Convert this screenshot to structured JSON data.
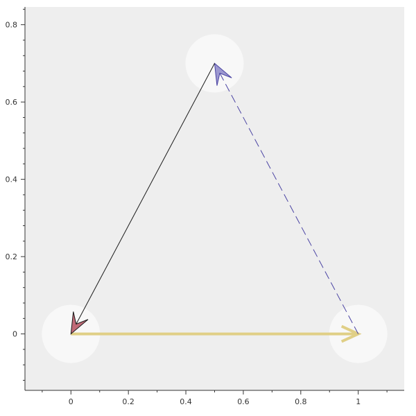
{
  "chart_data": {
    "type": "scatter",
    "title": "",
    "xlabel": "",
    "ylabel": "",
    "xlim": [
      -0.16,
      1.16
    ],
    "ylim": [
      -0.146,
      0.846
    ],
    "x_ticks": [
      0,
      0.2,
      0.4,
      0.6,
      0.8,
      1
    ],
    "x_tick_labels": [
      "0",
      "0.2",
      "0.4",
      "0.6",
      "0.8",
      "1"
    ],
    "y_ticks": [
      0,
      0.2,
      0.4,
      0.6,
      0.8
    ],
    "y_tick_labels": [
      "0",
      "0.2",
      "0.4",
      "0.6",
      "0.8"
    ],
    "grid": false,
    "nodes": [
      {
        "x": 0,
        "y": 0
      },
      {
        "x": 1,
        "y": 0
      },
      {
        "x": 0.5,
        "y": 0.7
      }
    ],
    "arrows": [
      {
        "from": [
          0,
          0
        ],
        "to": [
          1,
          0
        ],
        "style": "open-head",
        "line": "solid",
        "color": "#e0cf86",
        "width": 4
      },
      {
        "from": [
          1,
          0
        ],
        "to": [
          0.5,
          0.7
        ],
        "style": "filled-head",
        "line": "dashed",
        "color": "#4a43a3",
        "head_fill": "#9c98d0",
        "width": 1
      },
      {
        "from": [
          0.5,
          0.7
        ],
        "to": [
          0,
          0
        ],
        "style": "filled-head",
        "line": "solid",
        "color": "#1a1a1a",
        "head_fill": "#c06a77",
        "width": 1
      }
    ],
    "colors": {
      "plot_background": "#eeeeee",
      "node_circle": "#f8f8f8",
      "axis": "#333333"
    }
  }
}
